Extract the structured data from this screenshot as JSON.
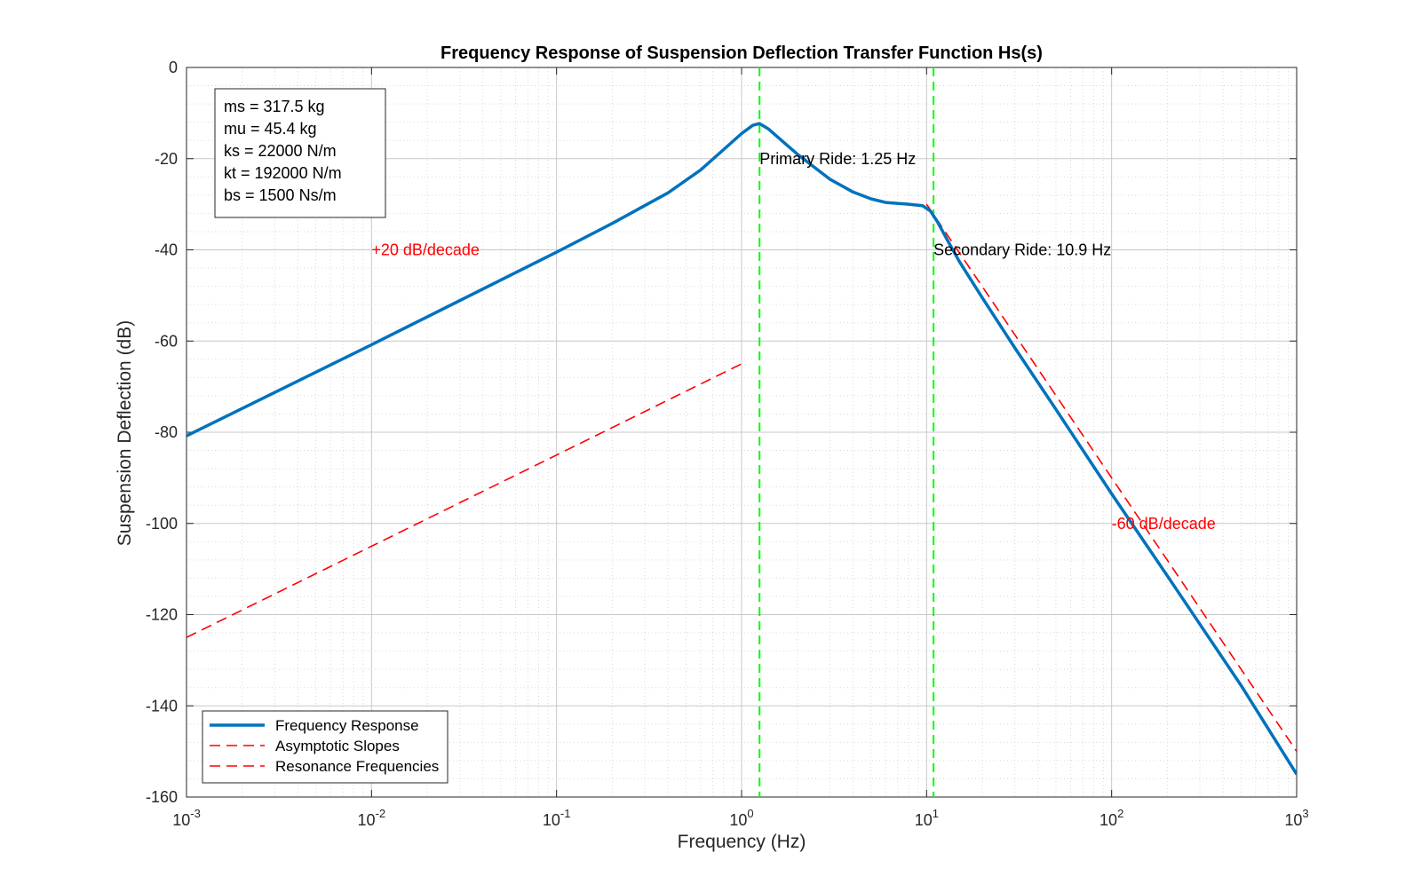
{
  "chart_data": {
    "type": "line",
    "title": "Frequency Response of Suspension Deflection Transfer Function Hs(s)",
    "xlabel": "Frequency (Hz)",
    "ylabel": "Suspension Deflection (dB)",
    "xscale": "log",
    "xlim": [
      0.001,
      1000
    ],
    "ylim": [
      -160,
      0
    ],
    "grid": true,
    "minor_grid": true,
    "x_ticks": [
      {
        "value": 0.001,
        "base": "10",
        "exp": "-3"
      },
      {
        "value": 0.01,
        "base": "10",
        "exp": "-2"
      },
      {
        "value": 0.1,
        "base": "10",
        "exp": "-1"
      },
      {
        "value": 1,
        "base": "10",
        "exp": "0"
      },
      {
        "value": 10,
        "base": "10",
        "exp": "1"
      },
      {
        "value": 100,
        "base": "10",
        "exp": "2"
      },
      {
        "value": 1000,
        "base": "10",
        "exp": "3"
      }
    ],
    "y_ticks": [
      0,
      -20,
      -40,
      -60,
      -80,
      -100,
      -120,
      -140,
      -160
    ],
    "y_tick_labels": [
      "0",
      "-20",
      "-40",
      "-60",
      "-80",
      "-100",
      "-120",
      "-140",
      "-160"
    ],
    "series": [
      {
        "name": "Frequency Response",
        "color": "#0072BD",
        "style": "solid",
        "x": [
          0.001,
          0.01,
          0.1,
          0.2,
          0.4,
          0.6,
          0.8,
          1.0,
          1.15,
          1.25,
          1.4,
          1.7,
          2.0,
          3.0,
          4.0,
          5.0,
          6.0,
          8.0,
          9.5,
          10.5,
          11.5,
          13,
          15,
          20,
          30,
          50,
          100,
          200,
          500,
          1000
        ],
        "y": [
          -80.8,
          -60.8,
          -40.5,
          -34.2,
          -27.5,
          -22.5,
          -18.0,
          -14.5,
          -12.7,
          -12.3,
          -13.5,
          -16.5,
          -19.0,
          -24.5,
          -27.3,
          -28.8,
          -29.6,
          -30.0,
          -30.3,
          -31.5,
          -34.0,
          -38.0,
          -42.5,
          -50.5,
          -61.5,
          -75.0,
          -93.5,
          -111.5,
          -135.5,
          -155.0
        ]
      },
      {
        "name": "Asymptotic Slopes",
        "color": "#FF0000",
        "style": "dashed",
        "x": [
          0.001,
          1
        ],
        "y": [
          -125,
          -65
        ]
      },
      {
        "name": "Resonance Frequencies",
        "color": "#FF0000",
        "style": "dashed",
        "x": [
          10,
          1000
        ],
        "y": [
          -30,
          -150
        ]
      }
    ],
    "resonance_lines": [
      {
        "x": 1.25,
        "color": "#00FF00",
        "label": "Primary Ride: 1.25 Hz",
        "label_x": 1.25,
        "label_y": -20
      },
      {
        "x": 10.9,
        "color": "#00FF00",
        "label": "Secondary Ride: 10.9 Hz",
        "label_x": 10.9,
        "label_y": -40
      }
    ],
    "annotations": [
      {
        "text": "+20 dB/decade",
        "x": 0.01,
        "y": -40,
        "color": "#FF0000"
      },
      {
        "text": "-60 dB/decade",
        "x": 100,
        "y": -100,
        "color": "#FF0000"
      }
    ],
    "info_box": {
      "lines": [
        "ms = 317.5 kg",
        "mu = 45.4 kg",
        "ks = 22000 N/m",
        "kt = 192000 N/m",
        "bs = 1500 Ns/m"
      ],
      "placement": "top-left"
    },
    "legend": {
      "placement": "bottom-left",
      "entries": [
        {
          "label": "Frequency Response",
          "color": "#0072BD",
          "style": "solid"
        },
        {
          "label": "Asymptotic Slopes",
          "color": "#FF0000",
          "style": "dashed"
        },
        {
          "label": "Resonance Frequencies",
          "color": "#FF0000",
          "style": "dashed"
        }
      ]
    }
  }
}
